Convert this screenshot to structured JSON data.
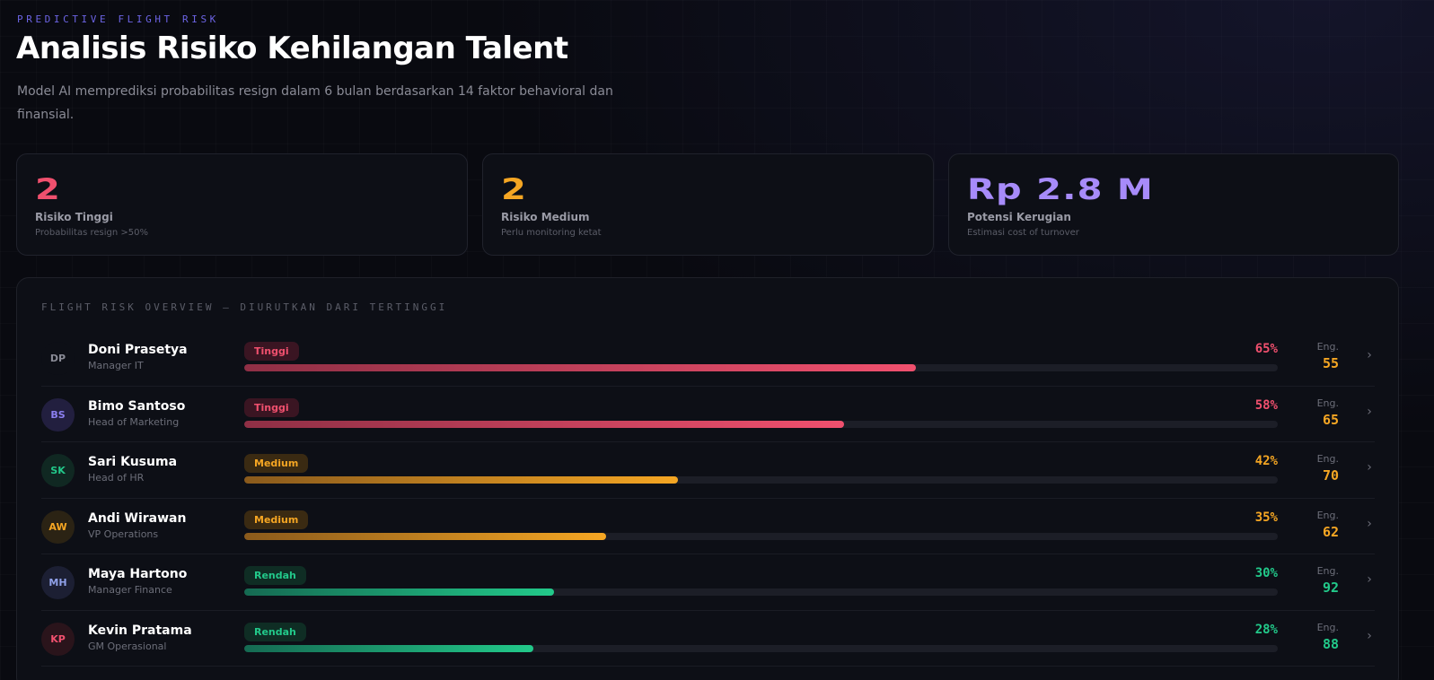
{
  "header": {
    "eyebrow": "PREDICTIVE FLIGHT RISK",
    "title": "Analisis Risiko Kehilangan Talent",
    "subtitle": "Model AI memprediksi probabilitas resign dalam 6 bulan berdasarkan 14 faktor behavioral dan finansial."
  },
  "stats": [
    {
      "value": "2",
      "label": "Risiko Tinggi",
      "hint": "Probabilitas resign >50%",
      "color": "#f0506e"
    },
    {
      "value": "2",
      "label": "Risiko Medium",
      "hint": "Perlu monitoring ketat",
      "color": "#f5a623"
    },
    {
      "value": "Rp 2.8 M",
      "label": "Potensi Kerugian",
      "hint": "Estimasi cost of turnover",
      "color": "#a78bfa"
    }
  ],
  "panel": {
    "title": "FLIGHT RISK OVERVIEW — DIURUTKAN DARI TERTINGGI",
    "eng_label": "Eng.",
    "chevron": "›"
  },
  "levels": {
    "Tinggi": {
      "color": "#f0506e",
      "badge_bg": "#3a1522",
      "bar_from": "#8f2f45",
      "bar_to": "#f0506e"
    },
    "Medium": {
      "color": "#f5a623",
      "badge_bg": "#3a2a12",
      "bar_from": "#8a5a1c",
      "bar_to": "#f5a623"
    },
    "Rendah": {
      "color": "#22c98a",
      "badge_bg": "#0f2d24",
      "bar_from": "#156a52",
      "bar_to": "#22c98a"
    }
  },
  "employees": [
    {
      "initials": "DP",
      "name": "Doni Prasetya",
      "role": "Manager IT",
      "level": "Tinggi",
      "risk_label": "65%",
      "risk": 0.65,
      "eng": "55",
      "eng_color": "#f5a623",
      "avatar_bg": "#0d0f16",
      "avatar_fg": "#8a8b96"
    },
    {
      "initials": "BS",
      "name": "Bimo Santoso",
      "role": "Head of Marketing",
      "level": "Tinggi",
      "risk_label": "58%",
      "risk": 0.58,
      "eng": "65",
      "eng_color": "#f5a623",
      "avatar_bg": "#221f3f",
      "avatar_fg": "#8b7ff0"
    },
    {
      "initials": "SK",
      "name": "Sari Kusuma",
      "role": "Head of HR",
      "level": "Medium",
      "risk_label": "42%",
      "risk": 0.42,
      "eng": "70",
      "eng_color": "#f5a623",
      "avatar_bg": "#102822",
      "avatar_fg": "#22c98a"
    },
    {
      "initials": "AW",
      "name": "Andi Wirawan",
      "role": "VP Operations",
      "level": "Medium",
      "risk_label": "35%",
      "risk": 0.35,
      "eng": "62",
      "eng_color": "#f5a623",
      "avatar_bg": "#2b2314",
      "avatar_fg": "#f5a623"
    },
    {
      "initials": "MH",
      "name": "Maya Hartono",
      "role": "Manager Finance",
      "level": "Rendah",
      "risk_label": "30%",
      "risk": 0.3,
      "eng": "92",
      "eng_color": "#22c98a",
      "avatar_bg": "#1c1f33",
      "avatar_fg": "#8fa0e8"
    },
    {
      "initials": "KP",
      "name": "Kevin Pratama",
      "role": "GM Operasional",
      "level": "Rendah",
      "risk_label": "28%",
      "risk": 0.28,
      "eng": "88",
      "eng_color": "#22c98a",
      "avatar_bg": "#2a141b",
      "avatar_fg": "#f0506e"
    }
  ]
}
